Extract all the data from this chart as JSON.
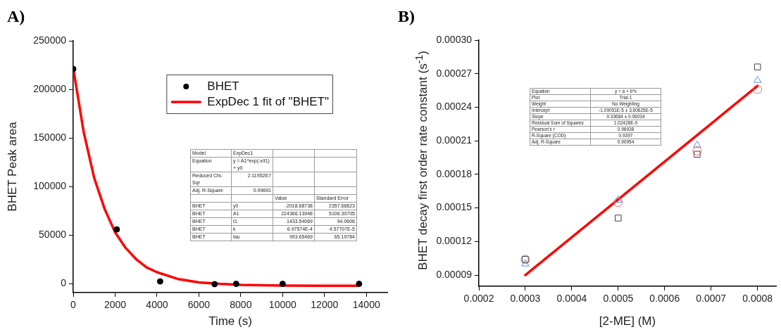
{
  "chart_data": [
    {
      "type": "scatter",
      "title": "A)",
      "xlabel": "Time (s)",
      "ylabel": "BHET Peak area",
      "xlim": [
        0,
        15000
      ],
      "xticks": [
        0,
        2000,
        4000,
        6000,
        8000,
        10000,
        12000,
        14000
      ],
      "ylim": [
        -9000,
        250000
      ],
      "yticks": [
        0,
        50000,
        100000,
        150000,
        200000,
        250000
      ],
      "grid": false,
      "legend": "top right",
      "series": [
        {
          "name": "BHET",
          "color": "#000000",
          "marker": "circle",
          "x": [
            0,
            2080,
            4150,
            6750,
            7780,
            10000,
            13650
          ],
          "values": [
            221000,
            56000,
            2500,
            -300,
            0,
            0,
            0
          ]
        },
        {
          "name": "ExpDec 1 fit of \"BHET\"",
          "type": "line",
          "color": "#ff0000",
          "marker": "none",
          "x": [
            0,
            500,
            1000,
            1500,
            2000,
            2500,
            3000,
            3500,
            4000,
            5000,
            6000,
            7000,
            8000,
            10000,
            12000,
            13650
          ],
          "values": [
            222000,
            156000,
            109000,
            77000,
            53000,
            37000,
            25500,
            17000,
            12000,
            5000,
            1500,
            0,
            -1000,
            -1800,
            -2000,
            -2000
          ]
        }
      ],
      "annotations": [
        "Model",
        "ExpDec1",
        "Equation",
        "y = A1*exp(-x/t1) + y0",
        "Reduced Chi-Sqr",
        "2.11952E7",
        "Adj. R-Square",
        "0.99691",
        "Value",
        "Standard Error",
        "BHET",
        "y0",
        "-2018.68738",
        "2357.66823",
        "BHET",
        "A1",
        "224366.13948",
        "5106.30705",
        "BHET",
        "t1",
        "1433.54069",
        "94.0606",
        "BHET",
        "k",
        "6.97574E-4",
        "4.57707E-5",
        "BHET",
        "tau",
        "993.65469",
        "65.19784"
      ]
    },
    {
      "type": "scatter",
      "title": "B)",
      "xlabel": "[2-ME] (M)",
      "ylabel": "BHET decay first order rate constant (s$^{-1}$)",
      "xlim": [
        0.0002,
        0.00084
      ],
      "xticks": [
        0.0002,
        0.0003,
        0.0004,
        0.0005,
        0.0006,
        0.0007,
        0.0008
      ],
      "ylim": [
        8e-05,
        0.0003
      ],
      "yticks": [
        {
          "value": 9e-05,
          "label": "0.00009"
        },
        0.00012,
        0.00015,
        0.00018,
        0.00021,
        0.00024,
        0.00027,
        {
          "value": 0.0003,
          "label": "0.00030"
        }
      ],
      "grid": false,
      "legend": false,
      "x": [
        0.0003,
        0.0005,
        0.00067,
        0.0008
      ],
      "series": [
        {
          "color": "#404040",
          "marker": "square",
          "values": [
            0.000104,
            0.000141,
            0.000198,
            0.000276
          ]
        },
        {
          "color": "#ff6666",
          "marker": "circle",
          "values": [
            0.000104,
            0.000155,
            0.000201,
            0.000256
          ]
        },
        {
          "color": "#5b8fe8",
          "marker": "triangle",
          "values": [
            0.0001,
            0.000157,
            0.000206,
            0.000264
          ]
        },
        {
          "type": "line",
          "color": "#ff0000",
          "marker": "none",
          "x": [
            0.0003,
            0.0008
          ],
          "values": [
            9e-05,
            0.000259
          ]
        }
      ],
      "annotations": [
        "Equation",
        "y = a + b*x",
        "Plot",
        "Trial 1",
        "Weight",
        "No Weighting",
        "Intercept",
        "-1.09051E-5 ± 3.60625E-5",
        "Slope",
        "0.33684 ± 0.06034",
        "Residual Sum of Squares",
        "1.02428E-9",
        "Pearson's r",
        "0.96938",
        "R-Square (COD)",
        "0.9397",
        "Adj. R-Square",
        "0.90954"
      ]
    }
  ]
}
